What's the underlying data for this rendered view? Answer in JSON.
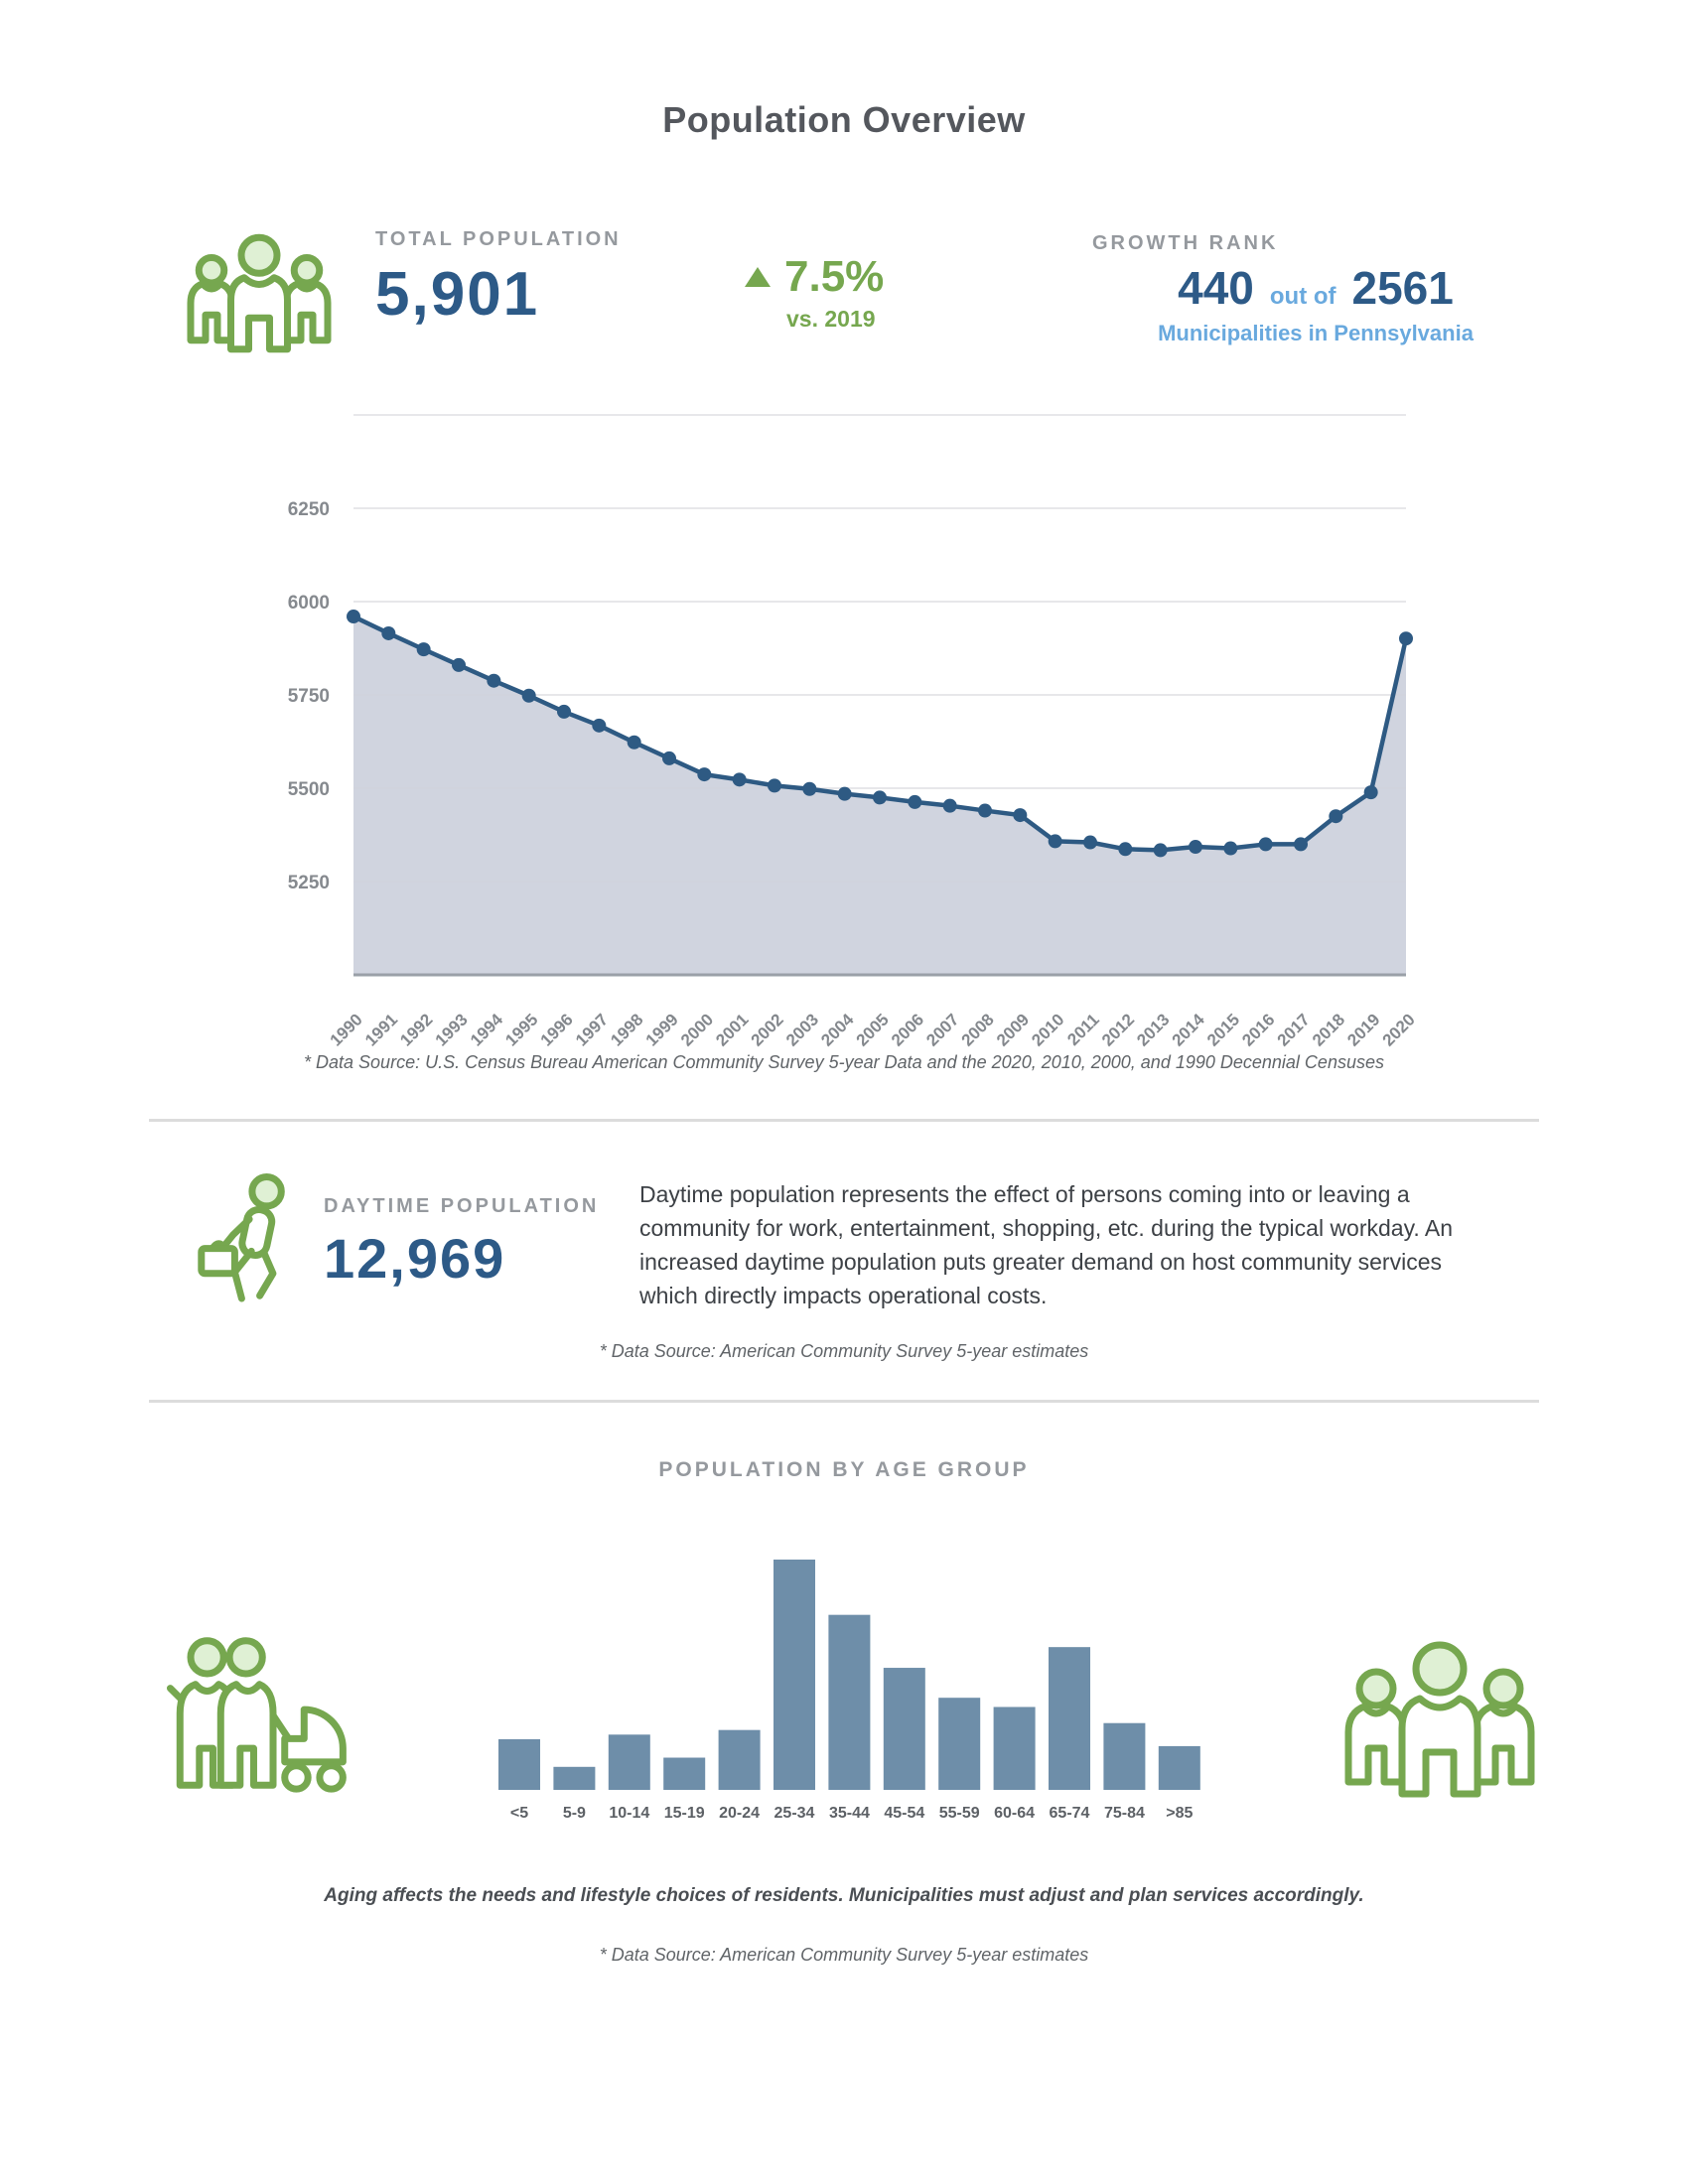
{
  "page": {
    "title": "Population Overview"
  },
  "stats": {
    "total_population": {
      "label": "TOTAL POPULATION",
      "value": "5,901",
      "icon": "people-group-icon"
    },
    "change": {
      "value": "7.5%",
      "caption": "vs. 2019",
      "direction": "up",
      "icon": "up-triangle-icon"
    },
    "growth_rank": {
      "label": "GROWTH RANK",
      "rank": "440",
      "separator": "out of",
      "total": "2561",
      "caption": "Municipalities in Pennsylvania"
    }
  },
  "population_chart_footnote": "* Data Source: U.S. Census Bureau American Community Survey 5-year Data and the 2020, 2010, 2000, and 1990 Decennial Censuses",
  "daytime": {
    "label": "DAYTIME POPULATION",
    "value": "12,969",
    "icon": "walking-person-briefcase-icon",
    "description": "Daytime population represents the effect of persons coming into or leaving a community for work, entertainment, shopping, etc. during the typical workday. An increased daytime population puts greater demand on host community services which directly impacts operational costs.",
    "footnote": "* Data Source: American Community Survey 5-year estimates"
  },
  "age_section": {
    "caption": "Aging affects the needs and lifestyle choices of residents. Municipalities must adjust and plan services accordingly.",
    "footnote": "* Data Source: American Community Survey 5-year estimates",
    "left_icon": "family-stroller-icon",
    "right_icon": "people-group-icon"
  },
  "chart_data": [
    {
      "id": "population-trend",
      "type": "line",
      "title": "",
      "x": [
        "1990",
        "1991",
        "1992",
        "1993",
        "1994",
        "1995",
        "1996",
        "1997",
        "1998",
        "1999",
        "2000",
        "2001",
        "2002",
        "2003",
        "2004",
        "2005",
        "2006",
        "2007",
        "2008",
        "2009",
        "2010",
        "2011",
        "2012",
        "2013",
        "2014",
        "2015",
        "2016",
        "2017",
        "2018",
        "2019",
        "2020"
      ],
      "series": [
        {
          "name": "Total population",
          "values": [
            5960,
            5915,
            5872,
            5830,
            5788,
            5748,
            5705,
            5668,
            5623,
            5580,
            5537,
            5523,
            5507,
            5498,
            5485,
            5475,
            5463,
            5453,
            5440,
            5428,
            5358,
            5355,
            5337,
            5334,
            5343,
            5339,
            5350,
            5350,
            5425,
            5489,
            5901
          ]
        }
      ],
      "ylim": [
        5000,
        6500
      ],
      "ytick_values": [
        6250,
        6000,
        5750,
        5500,
        5250
      ],
      "grid_values": [
        6500,
        6250,
        6000,
        5750,
        5500,
        5250
      ],
      "grid": true,
      "legend": "none",
      "marker": "circle",
      "area_fill": true,
      "line_color": "#2e5a83",
      "area_color": "#c7cad8"
    },
    {
      "id": "age-groups",
      "type": "bar",
      "title": "POPULATION BY AGE GROUP",
      "categories": [
        "<5",
        "5-9",
        "10-14",
        "15-19",
        "20-24",
        "25-34",
        "35-44",
        "45-54",
        "55-59",
        "60-64",
        "65-74",
        "75-84",
        ">85"
      ],
      "values_pct_of_max": [
        22,
        10,
        24,
        14,
        26,
        100,
        76,
        53,
        40,
        36,
        62,
        29,
        19
      ],
      "note": "No value axis shown in source; values are relative bar heights as percent of tallest bar (25-34).",
      "bar_color": "#6e8ea9",
      "grid": false,
      "legend": "none"
    }
  ],
  "colors": {
    "dark_blue": "#2d5a87",
    "light_blue": "#69a9de",
    "green": "#76a74f",
    "label_gray": "#95999e",
    "line": "#2e5a83",
    "area_fill": "#c7cad8",
    "bar": "#6e8ea9",
    "divider": "#dcdcdc"
  }
}
